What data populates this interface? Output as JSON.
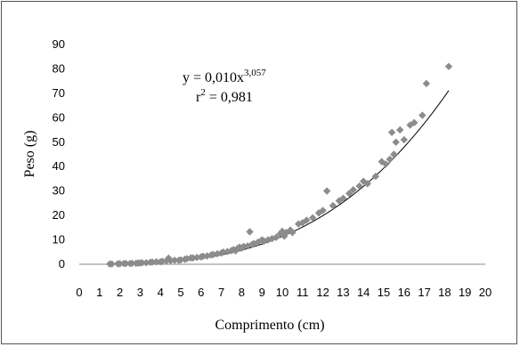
{
  "chart_data": {
    "type": "scatter",
    "xlabel": "Comprimento (cm)",
    "ylabel": "Peso (g)",
    "xlim": [
      0,
      20
    ],
    "ylim": [
      0,
      90
    ],
    "x_ticks": [
      "0",
      "1",
      "2",
      "3",
      "4",
      "5",
      "6",
      "7",
      "8",
      "9",
      "10",
      "11",
      "12",
      "13",
      "14",
      "15",
      "16",
      "17",
      "18",
      "19",
      "20"
    ],
    "y_ticks": [
      "0",
      "10",
      "20",
      "30",
      "40",
      "50",
      "60",
      "70",
      "80",
      "90"
    ],
    "grid": false,
    "legend": "none",
    "marker_color": "#8c8c8c",
    "trendline": {
      "type": "power",
      "a": 0.01,
      "b": 3.057,
      "x_range": [
        1.5,
        18.2
      ],
      "color": "#000000"
    },
    "equation": {
      "prefix": "y = 0,010x",
      "exponent": "3,057"
    },
    "r2": {
      "prefix": "r",
      "sup": "2",
      "suffix": " = 0,981"
    },
    "points": [
      [
        1.5,
        0.1
      ],
      [
        1.6,
        0.1
      ],
      [
        1.9,
        0.2
      ],
      [
        2.0,
        0.2
      ],
      [
        2.2,
        0.3
      ],
      [
        2.3,
        0.3
      ],
      [
        2.5,
        0.3
      ],
      [
        2.6,
        0.4
      ],
      [
        2.8,
        0.4
      ],
      [
        2.9,
        0.5
      ],
      [
        3.0,
        0.5
      ],
      [
        3.1,
        0.6
      ],
      [
        3.3,
        0.6
      ],
      [
        3.5,
        0.8
      ],
      [
        3.6,
        0.9
      ],
      [
        3.8,
        1.0
      ],
      [
        4.0,
        1.0
      ],
      [
        4.1,
        1.2
      ],
      [
        4.3,
        1.4
      ],
      [
        4.4,
        2.5
      ],
      [
        4.5,
        1.5
      ],
      [
        4.7,
        1.6
      ],
      [
        4.9,
        1.6
      ],
      [
        5.0,
        1.8
      ],
      [
        5.2,
        2.0
      ],
      [
        5.3,
        2.3
      ],
      [
        5.5,
        2.6
      ],
      [
        5.6,
        2.6
      ],
      [
        5.8,
        2.8
      ],
      [
        6.0,
        3.0
      ],
      [
        6.1,
        3.3
      ],
      [
        6.3,
        3.4
      ],
      [
        6.5,
        3.8
      ],
      [
        6.6,
        4.0
      ],
      [
        6.8,
        4.3
      ],
      [
        7.0,
        4.6
      ],
      [
        7.1,
        5.0
      ],
      [
        7.3,
        5.2
      ],
      [
        7.5,
        5.6
      ],
      [
        7.6,
        6.0
      ],
      [
        7.7,
        5.5
      ],
      [
        7.8,
        6.5
      ],
      [
        7.9,
        7.0
      ],
      [
        8.0,
        6.6
      ],
      [
        8.1,
        7.3
      ],
      [
        8.3,
        7.5
      ],
      [
        8.4,
        13.3
      ],
      [
        8.5,
        8.0
      ],
      [
        8.6,
        8.5
      ],
      [
        8.8,
        9.0
      ],
      [
        9.0,
        10.0
      ],
      [
        9.1,
        9.5
      ],
      [
        9.3,
        10.0
      ],
      [
        9.5,
        10.5
      ],
      [
        9.7,
        11.0
      ],
      [
        9.9,
        12.5
      ],
      [
        10.0,
        13.5
      ],
      [
        10.1,
        11.5
      ],
      [
        10.2,
        13.0
      ],
      [
        10.4,
        14.0
      ],
      [
        10.5,
        13.0
      ],
      [
        10.8,
        16.5
      ],
      [
        11.0,
        17.0
      ],
      [
        11.2,
        18.0
      ],
      [
        11.5,
        19.0
      ],
      [
        11.8,
        21.0
      ],
      [
        12.0,
        22.0
      ],
      [
        12.2,
        30.0
      ],
      [
        12.5,
        24.0
      ],
      [
        12.8,
        26.0
      ],
      [
        13.0,
        27.0
      ],
      [
        13.3,
        29.0
      ],
      [
        13.5,
        30.5
      ],
      [
        13.8,
        32.0
      ],
      [
        14.0,
        34.0
      ],
      [
        14.2,
        33.0
      ],
      [
        14.6,
        36.0
      ],
      [
        14.9,
        42.0
      ],
      [
        15.1,
        41.0
      ],
      [
        15.3,
        43.0
      ],
      [
        15.4,
        54.0
      ],
      [
        15.5,
        45.0
      ],
      [
        15.6,
        50.0
      ],
      [
        15.8,
        55.0
      ],
      [
        16.0,
        51.0
      ],
      [
        16.3,
        57.0
      ],
      [
        16.5,
        58.0
      ],
      [
        16.9,
        61.0
      ],
      [
        17.1,
        74.0
      ],
      [
        18.2,
        81.0
      ]
    ]
  }
}
